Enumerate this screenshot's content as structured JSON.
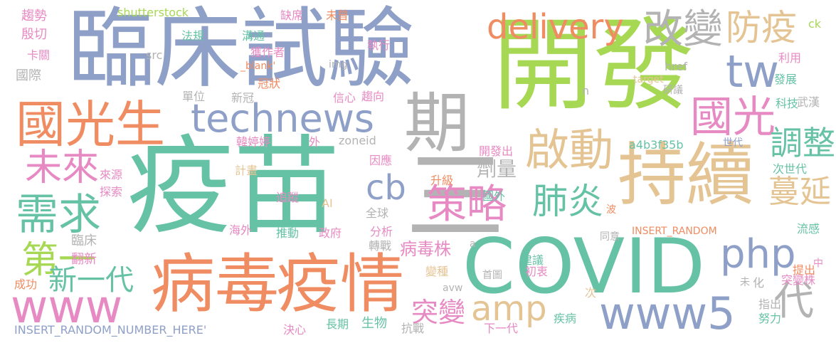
{
  "palette": {
    "blue": "#8fa0c8",
    "green": "#66c2a5",
    "orange": "#f08c62",
    "lime": "#a6d854",
    "pink": "#e78ac3",
    "tan": "#e5c494",
    "yellow": "#e8d242",
    "gray": "#b3b3b3"
  },
  "words": [
    "臨床試驗",
    "開發",
    "疫苗",
    "COVID",
    "持續",
    "病毒",
    "疫情",
    "期",
    "technews",
    "國光生",
    "國光",
    "三",
    "delivery",
    "改變",
    "防疫",
    "tw",
    "啟動",
    "調整",
    "策略",
    "肺炎",
    "需求",
    "未來",
    "cb",
    "蔓延",
    "www",
    "www5",
    "amp",
    "php",
    "第一",
    "新一代",
    "突變",
    "病毒株",
    "代",
    "劑量",
    "趨勢",
    "殷切",
    "卡關",
    "國際",
    "臨床",
    "翻新",
    "成功",
    "來源",
    "探索",
    "海外",
    "shutterstock",
    "src",
    "法規",
    "溝通",
    "缺席",
    "獲作者",
    "未曾",
    "執行",
    "_blank'",
    "img",
    "冠狀",
    "單位",
    "新冠",
    "信心",
    "趨向",
    "韓婷婷",
    "外",
    "zoneid",
    "因應",
    "計畫",
    "升級",
    "國外",
    "全球",
    "AI",
    "追蹤",
    "推動",
    "政府",
    "分析",
    "轉戰",
    "變種",
    "a",
    "avw",
    "抗戰",
    "生物",
    "長期",
    "決心",
    "首圖",
    "初衷",
    "建議",
    "下一代",
    "疾病",
    "INSERT_RANDOM_NUMBER_HERE'",
    "INSERT_RANDOM",
    "a4b3f35b",
    "開發出",
    "世代",
    "次世代",
    "href",
    "n",
    "研議",
    "發展",
    "科技",
    "武漢",
    "target",
    "利用",
    "ck",
    "波",
    "同意",
    "流感",
    "中",
    "提出",
    "突變株",
    "次",
    "未",
    "化",
    "指出",
    "努力"
  ]
}
